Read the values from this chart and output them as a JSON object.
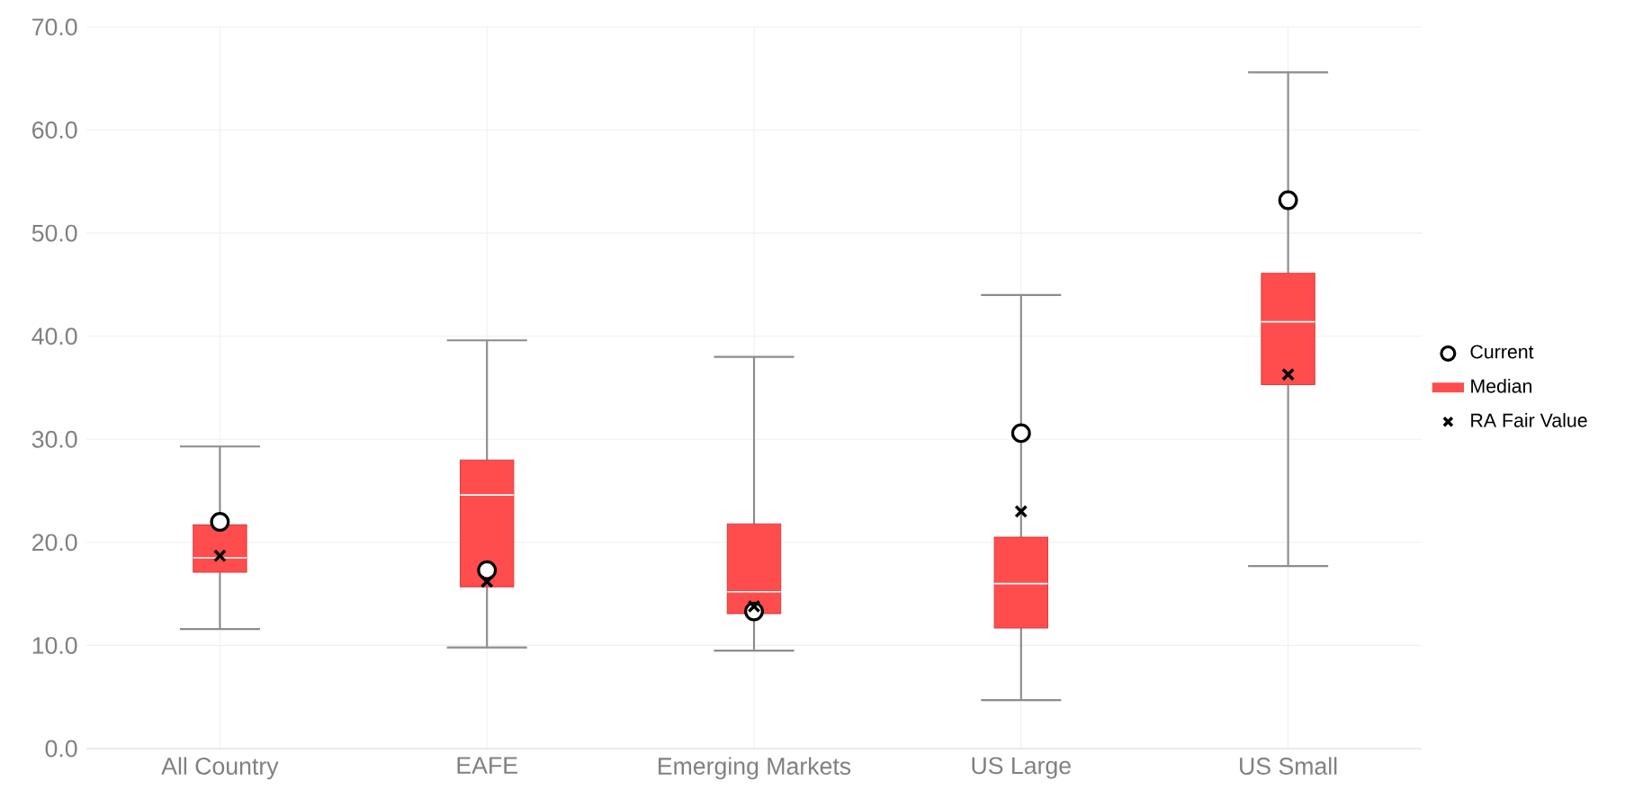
{
  "chart_data": {
    "type": "box",
    "categories": [
      "All Country",
      "EAFE",
      "Emerging Markets",
      "US Large",
      "US Small"
    ],
    "ylim": [
      0,
      70
    ],
    "yticks": [
      {
        "value": 0,
        "label": "0.0"
      },
      {
        "value": 10,
        "label": "10.0"
      },
      {
        "value": 20,
        "label": "20.0"
      },
      {
        "value": 30,
        "label": "30.0"
      },
      {
        "value": 40,
        "label": "40.0"
      },
      {
        "value": 50,
        "label": "50.0"
      },
      {
        "value": 60,
        "label": "60.0"
      },
      {
        "value": 70,
        "label": "70.0"
      }
    ],
    "grid": true,
    "legend": "right",
    "series": [
      {
        "name": "Current",
        "type": "scatter",
        "marker": "circle",
        "color": "#000000",
        "x": [
          "All Country",
          "EAFE",
          "Emerging Markets",
          "US Large",
          "US Small"
        ],
        "values": [
          22.0,
          17.3,
          13.3,
          30.6,
          53.2
        ]
      },
      {
        "name": "Median",
        "color": "#ff4d4d",
        "boxes": [
          {
            "low": 11.6,
            "q1": 17.1,
            "median": 18.5,
            "q3": 21.7,
            "high": 29.3
          },
          {
            "low": 9.8,
            "q1": 15.7,
            "median": 24.6,
            "q3": 28.0,
            "high": 39.6
          },
          {
            "low": 9.5,
            "q1": 13.1,
            "median": 15.2,
            "q3": 21.8,
            "high": 38.0
          },
          {
            "low": 4.7,
            "q1": 11.7,
            "median": 16.0,
            "q3": 20.5,
            "high": 44.0
          },
          {
            "low": 17.7,
            "q1": 35.3,
            "median": 41.4,
            "q3": 46.1,
            "high": 65.6
          }
        ]
      },
      {
        "name": "RA Fair Value",
        "type": "scatter",
        "marker": "cross",
        "color": "#000000",
        "x": [
          "All Country",
          "EAFE",
          "Emerging Markets",
          "US Large",
          "US Small"
        ],
        "values": [
          18.7,
          16.2,
          13.8,
          23.0,
          36.3
        ]
      }
    ]
  }
}
